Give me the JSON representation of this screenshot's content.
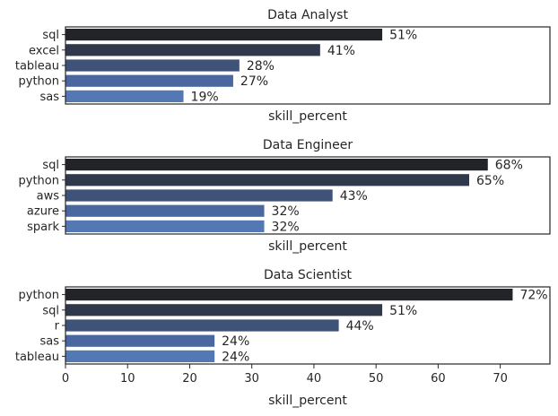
{
  "chart_data": [
    {
      "type": "bar",
      "orientation": "horizontal",
      "title": "Data Analyst",
      "xlabel": "skill_percent",
      "ylabel": "",
      "xlim": [
        0,
        78
      ],
      "categories": [
        "sql",
        "excel",
        "tableau",
        "python",
        "sas"
      ],
      "values": [
        51,
        41,
        28,
        27,
        19
      ],
      "value_labels": [
        "51%",
        "41%",
        "28%",
        "27%",
        "19%"
      ],
      "show_xticks": false
    },
    {
      "type": "bar",
      "orientation": "horizontal",
      "title": "Data Engineer",
      "xlabel": "skill_percent",
      "ylabel": "",
      "xlim": [
        0,
        78
      ],
      "categories": [
        "sql",
        "python",
        "aws",
        "azure",
        "spark"
      ],
      "values": [
        68,
        65,
        43,
        32,
        32
      ],
      "value_labels": [
        "68%",
        "65%",
        "43%",
        "32%",
        "32%"
      ],
      "show_xticks": false
    },
    {
      "type": "bar",
      "orientation": "horizontal",
      "title": "Data Scientist",
      "xlabel": "skill_percent",
      "ylabel": "",
      "xlim": [
        0,
        78
      ],
      "categories": [
        "python",
        "sql",
        "r",
        "sas",
        "tableau"
      ],
      "values": [
        72,
        51,
        44,
        24,
        24
      ],
      "value_labels": [
        "72%",
        "51%",
        "44%",
        "24%",
        "24%"
      ],
      "show_xticks": true,
      "xticks": [
        0,
        10,
        20,
        30,
        40,
        50,
        60,
        70
      ],
      "xtick_labels": [
        "0",
        "10",
        "20",
        "30",
        "40",
        "50",
        "60",
        "70"
      ]
    }
  ],
  "colors": {
    "bar_palette": [
      "#222428",
      "#30384b",
      "#3f5278",
      "#4b67a0",
      "#5478b4"
    ],
    "text": "#262626",
    "frame": "#262626"
  },
  "grid": false
}
